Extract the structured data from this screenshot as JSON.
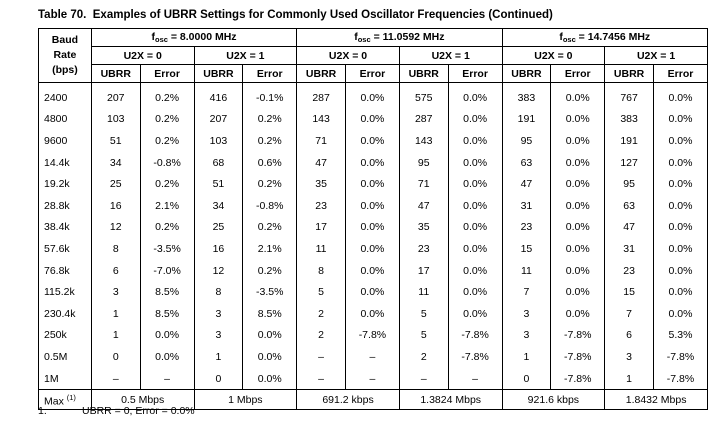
{
  "title": "Table 70.  Examples of UBRR Settings for Commonly Used Oscillator Frequencies (Continued)",
  "header": {
    "baud_rate": [
      "Baud",
      "Rate",
      "(bps)"
    ],
    "oscillators": [
      {
        "f": "f",
        "sub": "osc",
        "freq": " = 8.0000 MHz"
      },
      {
        "f": "f",
        "sub": "osc",
        "freq": " = 11.0592 MHz"
      },
      {
        "f": "f",
        "sub": "osc",
        "freq": " = 14.7456 MHz"
      }
    ],
    "u2x": [
      "U2X = 0",
      "U2X = 1"
    ],
    "columns": [
      "UBRR",
      "Error"
    ]
  },
  "rows": [
    {
      "baud": "2400",
      "cells": [
        "207",
        "0.2%",
        "416",
        "-0.1%",
        "287",
        "0.0%",
        "575",
        "0.0%",
        "383",
        "0.0%",
        "767",
        "0.0%"
      ]
    },
    {
      "baud": "4800",
      "cells": [
        "103",
        "0.2%",
        "207",
        "0.2%",
        "143",
        "0.0%",
        "287",
        "0.0%",
        "191",
        "0.0%",
        "383",
        "0.0%"
      ]
    },
    {
      "baud": "9600",
      "cells": [
        "51",
        "0.2%",
        "103",
        "0.2%",
        "71",
        "0.0%",
        "143",
        "0.0%",
        "95",
        "0.0%",
        "191",
        "0.0%"
      ]
    },
    {
      "baud": "14.4k",
      "cells": [
        "34",
        "-0.8%",
        "68",
        "0.6%",
        "47",
        "0.0%",
        "95",
        "0.0%",
        "63",
        "0.0%",
        "127",
        "0.0%"
      ]
    },
    {
      "baud": "19.2k",
      "cells": [
        "25",
        "0.2%",
        "51",
        "0.2%",
        "35",
        "0.0%",
        "71",
        "0.0%",
        "47",
        "0.0%",
        "95",
        "0.0%"
      ]
    },
    {
      "baud": "28.8k",
      "cells": [
        "16",
        "2.1%",
        "34",
        "-0.8%",
        "23",
        "0.0%",
        "47",
        "0.0%",
        "31",
        "0.0%",
        "63",
        "0.0%"
      ]
    },
    {
      "baud": "38.4k",
      "cells": [
        "12",
        "0.2%",
        "25",
        "0.2%",
        "17",
        "0.0%",
        "35",
        "0.0%",
        "23",
        "0.0%",
        "47",
        "0.0%"
      ]
    },
    {
      "baud": "57.6k",
      "cells": [
        "8",
        "-3.5%",
        "16",
        "2.1%",
        "11",
        "0.0%",
        "23",
        "0.0%",
        "15",
        "0.0%",
        "31",
        "0.0%"
      ]
    },
    {
      "baud": "76.8k",
      "cells": [
        "6",
        "-7.0%",
        "12",
        "0.2%",
        "8",
        "0.0%",
        "17",
        "0.0%",
        "11",
        "0.0%",
        "23",
        "0.0%"
      ]
    },
    {
      "baud": "115.2k",
      "cells": [
        "3",
        "8.5%",
        "8",
        "-3.5%",
        "5",
        "0.0%",
        "11",
        "0.0%",
        "7",
        "0.0%",
        "15",
        "0.0%"
      ]
    },
    {
      "baud": "230.4k",
      "cells": [
        "1",
        "8.5%",
        "3",
        "8.5%",
        "2",
        "0.0%",
        "5",
        "0.0%",
        "3",
        "0.0%",
        "7",
        "0.0%"
      ]
    },
    {
      "baud": "250k",
      "cells": [
        "1",
        "0.0%",
        "3",
        "0.0%",
        "2",
        "-7.8%",
        "5",
        "-7.8%",
        "3",
        "-7.8%",
        "6",
        "5.3%"
      ]
    },
    {
      "baud": "0.5M",
      "cells": [
        "0",
        "0.0%",
        "1",
        "0.0%",
        "–",
        "–",
        "2",
        "-7.8%",
        "1",
        "-7.8%",
        "3",
        "-7.8%"
      ]
    },
    {
      "baud": "1M",
      "cells": [
        "–",
        "–",
        "0",
        "0.0%",
        "–",
        "–",
        "–",
        "–",
        "0",
        "-7.8%",
        "1",
        "-7.8%"
      ]
    }
  ],
  "max": {
    "label": "Max",
    "note": "(1)",
    "values": [
      "0.5 Mbps",
      "1 Mbps",
      "691.2 kbps",
      "1.3824 Mbps",
      "921.6 kbps",
      "1.8432 Mbps"
    ]
  },
  "footnote": {
    "marker": "1.",
    "text": "UBRR = 0, Error = 0.0%"
  }
}
